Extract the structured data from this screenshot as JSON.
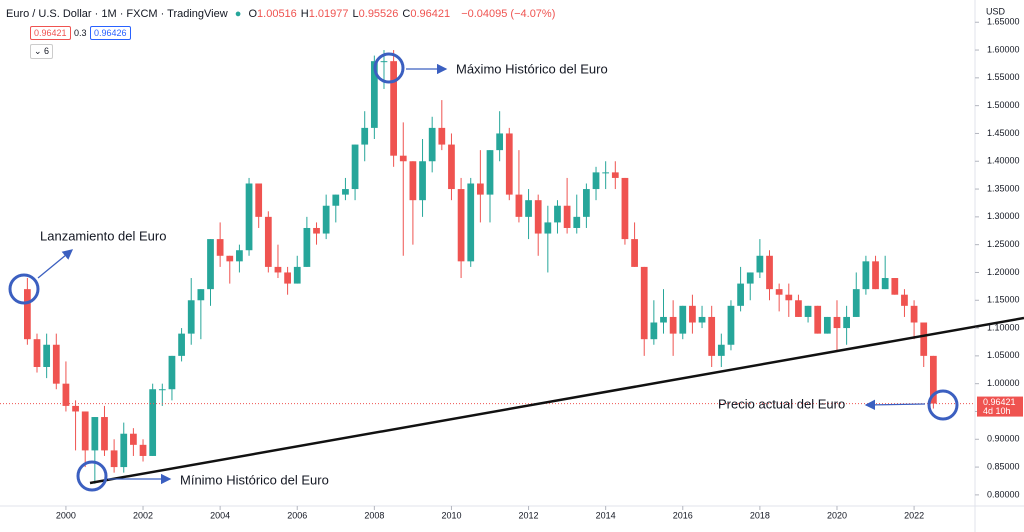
{
  "header": {
    "symbol": "Euro / U.S. Dollar · 1M · FXCM · TradingView",
    "ohlc": [
      {
        "label": "O",
        "value": "1.00516"
      },
      {
        "label": "H",
        "value": "1.01977"
      },
      {
        "label": "L",
        "value": "0.95526"
      },
      {
        "label": "C",
        "value": "0.96421"
      }
    ],
    "change": "−0.04095 (−4.07%)",
    "sell": "0.96421",
    "spread": "0.3",
    "buy": "0.96426",
    "indicators": "6",
    "currency": "USD"
  },
  "chart_data": {
    "type": "candlestick",
    "x": [
      1999,
      1999.25,
      1999.5,
      1999.75,
      2000,
      2000.25,
      2000.5,
      2000.75,
      2001,
      2001.25,
      2001.5,
      2001.75,
      2002,
      2002.25,
      2002.5,
      2002.75,
      2003,
      2003.25,
      2003.5,
      2003.75,
      2004,
      2004.25,
      2004.5,
      2004.75,
      2005,
      2005.25,
      2005.5,
      2005.75,
      2006,
      2006.25,
      2006.5,
      2006.75,
      2007,
      2007.25,
      2007.5,
      2007.75,
      2008,
      2008.25,
      2008.5,
      2008.75,
      2009,
      2009.25,
      2009.5,
      2009.75,
      2010,
      2010.25,
      2010.5,
      2010.75,
      2011,
      2011.25,
      2011.5,
      2011.75,
      2012,
      2012.25,
      2012.5,
      2012.75,
      2013,
      2013.25,
      2013.5,
      2013.75,
      2014,
      2014.25,
      2014.5,
      2014.75,
      2015,
      2015.25,
      2015.5,
      2015.75,
      2016,
      2016.25,
      2016.5,
      2016.75,
      2017,
      2017.25,
      2017.5,
      2017.75,
      2018,
      2018.25,
      2018.5,
      2018.75,
      2019,
      2019.25,
      2019.5,
      2019.75,
      2020,
      2020.25,
      2020.5,
      2020.75,
      2021,
      2021.25,
      2021.5,
      2021.75,
      2022,
      2022.25,
      2022.5
    ],
    "open": [
      1.17,
      1.08,
      1.03,
      1.07,
      1.0,
      0.96,
      0.95,
      0.88,
      0.94,
      0.88,
      0.85,
      0.91,
      0.89,
      0.87,
      0.99,
      0.99,
      1.05,
      1.09,
      1.15,
      1.17,
      1.26,
      1.23,
      1.22,
      1.24,
      1.36,
      1.3,
      1.21,
      1.2,
      1.18,
      1.21,
      1.28,
      1.27,
      1.32,
      1.34,
      1.35,
      1.43,
      1.46,
      1.58,
      1.58,
      1.41,
      1.4,
      1.33,
      1.4,
      1.46,
      1.43,
      1.35,
      1.22,
      1.36,
      1.34,
      1.42,
      1.45,
      1.34,
      1.3,
      1.33,
      1.27,
      1.29,
      1.32,
      1.28,
      1.3,
      1.35,
      1.38,
      1.38,
      1.37,
      1.26,
      1.21,
      1.08,
      1.11,
      1.12,
      1.09,
      1.14,
      1.11,
      1.12,
      1.05,
      1.07,
      1.14,
      1.18,
      1.2,
      1.23,
      1.17,
      1.16,
      1.15,
      1.12,
      1.14,
      1.09,
      1.12,
      1.1,
      1.12,
      1.17,
      1.22,
      1.17,
      1.19,
      1.16,
      1.14,
      1.11,
      1.05
    ],
    "high": [
      1.19,
      1.09,
      1.09,
      1.09,
      1.04,
      0.97,
      0.95,
      0.94,
      0.96,
      0.9,
      0.93,
      0.92,
      0.9,
      1.0,
      1.0,
      1.05,
      1.1,
      1.19,
      1.17,
      1.26,
      1.29,
      1.23,
      1.25,
      1.37,
      1.36,
      1.31,
      1.25,
      1.21,
      1.23,
      1.3,
      1.29,
      1.34,
      1.34,
      1.37,
      1.43,
      1.49,
      1.59,
      1.6,
      1.6,
      1.47,
      1.4,
      1.44,
      1.48,
      1.51,
      1.45,
      1.37,
      1.37,
      1.42,
      1.42,
      1.49,
      1.46,
      1.42,
      1.35,
      1.34,
      1.32,
      1.33,
      1.37,
      1.34,
      1.36,
      1.39,
      1.4,
      1.4,
      1.37,
      1.29,
      1.21,
      1.15,
      1.17,
      1.15,
      1.14,
      1.16,
      1.14,
      1.14,
      1.09,
      1.15,
      1.21,
      1.2,
      1.26,
      1.24,
      1.18,
      1.18,
      1.16,
      1.14,
      1.14,
      1.12,
      1.15,
      1.14,
      1.2,
      1.23,
      1.23,
      1.23,
      1.19,
      1.17,
      1.15,
      1.11,
      1.05
    ],
    "low": [
      1.07,
      1.02,
      1.01,
      0.99,
      0.95,
      0.88,
      0.85,
      0.82,
      0.87,
      0.84,
      0.84,
      0.87,
      0.86,
      0.87,
      0.96,
      0.97,
      1.04,
      1.07,
      1.08,
      1.14,
      1.21,
      1.18,
      1.2,
      1.23,
      1.28,
      1.2,
      1.19,
      1.16,
      1.18,
      1.21,
      1.25,
      1.26,
      1.29,
      1.33,
      1.33,
      1.4,
      1.44,
      1.53,
      1.39,
      1.23,
      1.25,
      1.3,
      1.38,
      1.42,
      1.33,
      1.19,
      1.21,
      1.29,
      1.29,
      1.4,
      1.33,
      1.29,
      1.26,
      1.23,
      1.2,
      1.27,
      1.27,
      1.27,
      1.28,
      1.33,
      1.35,
      1.35,
      1.25,
      1.21,
      1.05,
      1.07,
      1.09,
      1.05,
      1.08,
      1.09,
      1.1,
      1.03,
      1.03,
      1.06,
      1.13,
      1.15,
      1.19,
      1.15,
      1.13,
      1.12,
      1.12,
      1.11,
      1.09,
      1.09,
      1.06,
      1.07,
      1.12,
      1.16,
      1.17,
      1.17,
      1.16,
      1.12,
      1.08,
      1.03,
      0.95526
    ],
    "close": [
      1.08,
      1.03,
      1.07,
      1.0,
      0.96,
      0.95,
      0.88,
      0.94,
      0.88,
      0.85,
      0.91,
      0.89,
      0.87,
      0.99,
      0.99,
      1.05,
      1.09,
      1.15,
      1.17,
      1.26,
      1.23,
      1.22,
      1.24,
      1.36,
      1.3,
      1.21,
      1.2,
      1.18,
      1.21,
      1.28,
      1.27,
      1.32,
      1.34,
      1.35,
      1.43,
      1.46,
      1.58,
      1.58,
      1.41,
      1.4,
      1.33,
      1.4,
      1.46,
      1.43,
      1.35,
      1.22,
      1.36,
      1.34,
      1.42,
      1.45,
      1.34,
      1.3,
      1.33,
      1.27,
      1.29,
      1.32,
      1.28,
      1.3,
      1.35,
      1.38,
      1.38,
      1.37,
      1.26,
      1.21,
      1.08,
      1.11,
      1.12,
      1.09,
      1.14,
      1.11,
      1.12,
      1.05,
      1.07,
      1.14,
      1.18,
      1.2,
      1.23,
      1.17,
      1.16,
      1.15,
      1.12,
      1.14,
      1.09,
      1.12,
      1.1,
      1.12,
      1.17,
      1.22,
      1.17,
      1.19,
      1.16,
      1.14,
      1.11,
      1.05,
      0.96421
    ],
    "up_color": "#26a69a",
    "down_color": "#ef5350",
    "xlim": [
      1998.29,
      2023.58
    ],
    "xticks": [
      2000,
      2002,
      2004,
      2006,
      2008,
      2010,
      2012,
      2014,
      2016,
      2018,
      2020,
      2022
    ],
    "ylim": [
      0.78,
      1.69
    ],
    "yticks": [
      {
        "value": 0.8,
        "label": "0.80000"
      },
      {
        "value": 0.85,
        "label": "0.85000"
      },
      {
        "value": 0.9,
        "label": "0.90000"
      },
      {
        "value": 0.95,
        "label": "0.95000"
      },
      {
        "value": 1.0,
        "label": "1.00000"
      },
      {
        "value": 1.05,
        "label": "1.05000"
      },
      {
        "value": 1.1,
        "label": "1.10000"
      },
      {
        "value": 1.15,
        "label": "1.15000"
      },
      {
        "value": 1.2,
        "label": "1.20000"
      },
      {
        "value": 1.25,
        "label": "1.25000"
      },
      {
        "value": 1.3,
        "label": "1.30000"
      },
      {
        "value": 1.35,
        "label": "1.35000"
      },
      {
        "value": 1.4,
        "label": "1.40000"
      },
      {
        "value": 1.45,
        "label": "1.45000"
      },
      {
        "value": 1.5,
        "label": "1.50000"
      },
      {
        "value": 1.55,
        "label": "1.55000"
      },
      {
        "value": 1.6,
        "label": "1.60000"
      },
      {
        "value": 1.65,
        "label": "1.65000"
      }
    ],
    "grid": false,
    "last_price_label": "0.96421",
    "countdown": "4d 10h",
    "annotations": [
      "Máximo Histórico del Euro",
      "Lanzamiento del Euro",
      "Mínimo Histórico del Euro",
      "Precio actual del Euro"
    ]
  }
}
